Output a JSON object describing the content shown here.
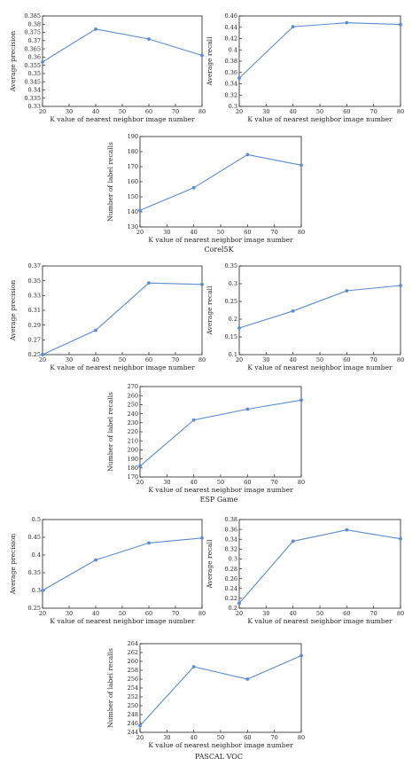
{
  "colors": {
    "series": "#5b8bd0",
    "axis": "#222222",
    "background": "#ffffff"
  },
  "captions": [
    "Corel5K",
    "ESP Game",
    "PASCAL VOC"
  ],
  "chart_data": [
    {
      "type": "line",
      "dataset": "Corel5K",
      "xlabel": "K value of nearest neighbor image number",
      "ylabel": "Average precision",
      "x": [
        20,
        40,
        60,
        80
      ],
      "xlim": [
        20,
        80
      ],
      "xticks": [
        20,
        30,
        40,
        50,
        60,
        70,
        80
      ],
      "y": [
        0.357,
        0.377,
        0.371,
        0.361
      ],
      "ylim": [
        0.33,
        0.385
      ],
      "yticks": [
        "0.33",
        "0.335",
        "0.34",
        "0.345",
        "0.35",
        "0.355",
        "0.36",
        "0.365",
        "0.37",
        "0.375",
        "0.38",
        "0.385"
      ]
    },
    {
      "type": "line",
      "dataset": "Corel5K",
      "xlabel": "K value of nearest neighbor image number",
      "ylabel": "Average recall",
      "x": [
        20,
        40,
        60,
        80
      ],
      "xlim": [
        20,
        80
      ],
      "xticks": [
        20,
        30,
        40,
        50,
        60,
        70,
        80
      ],
      "y": [
        0.35,
        0.441,
        0.448,
        0.445
      ],
      "ylim": [
        0.3,
        0.46
      ],
      "yticks": [
        "0.3",
        "0.32",
        "0.34",
        "0.36",
        "0.38",
        "0.4",
        "0.42",
        "0.44",
        "0.46"
      ]
    },
    {
      "type": "line",
      "dataset": "Corel5K",
      "xlabel": "K value of nearest neighbor image number",
      "ylabel": "Number of label recalls",
      "x": [
        20,
        40,
        60,
        80
      ],
      "xlim": [
        20,
        80
      ],
      "xticks": [
        20,
        30,
        40,
        50,
        60,
        70,
        80
      ],
      "y": [
        141,
        156,
        178,
        171
      ],
      "ylim": [
        130,
        190
      ],
      "yticks": [
        "130",
        "140",
        "150",
        "160",
        "170",
        "180",
        "190"
      ]
    },
    {
      "type": "line",
      "dataset": "ESP Game",
      "xlabel": "K value of nearest neighbor image number",
      "ylabel": "Average precision",
      "x": [
        20,
        40,
        60,
        80
      ],
      "xlim": [
        20,
        80
      ],
      "xticks": [
        20,
        30,
        40,
        50,
        60,
        70,
        80
      ],
      "y": [
        0.25,
        0.283,
        0.347,
        0.345
      ],
      "ylim": [
        0.25,
        0.37
      ],
      "yticks": [
        "0.25",
        "0.27",
        "0.29",
        "0.31",
        "0.33",
        "0.35",
        "0.37"
      ]
    },
    {
      "type": "line",
      "dataset": "ESP Game",
      "xlabel": "K value of nearest neighbor image number",
      "ylabel": "Average recall",
      "x": [
        20,
        40,
        60,
        80
      ],
      "xlim": [
        20,
        80
      ],
      "xticks": [
        20,
        30,
        40,
        50,
        60,
        70,
        80
      ],
      "y": [
        0.175,
        0.223,
        0.28,
        0.295
      ],
      "ylim": [
        0.1,
        0.35
      ],
      "yticks": [
        "0.1",
        "0.15",
        "0.2",
        "0.25",
        "0.3",
        "0.35"
      ]
    },
    {
      "type": "line",
      "dataset": "ESP Game",
      "xlabel": "K value of nearest neighbor image number",
      "ylabel": "Number of label recalls",
      "x": [
        20,
        40,
        60,
        80
      ],
      "xlim": [
        20,
        80
      ],
      "xticks": [
        20,
        30,
        40,
        50,
        60,
        70,
        80
      ],
      "y": [
        182,
        233,
        245,
        255
      ],
      "ylim": [
        170,
        270
      ],
      "yticks": [
        "170",
        "180",
        "190",
        "200",
        "210",
        "220",
        "230",
        "240",
        "250",
        "260",
        "270"
      ]
    },
    {
      "type": "line",
      "dataset": "PASCAL VOC",
      "xlabel": "K value of nearest neighbor image number",
      "ylabel": "Average precision",
      "x": [
        20,
        40,
        60,
        80
      ],
      "xlim": [
        20,
        80
      ],
      "xticks": [
        20,
        30,
        40,
        50,
        60,
        70,
        80
      ],
      "y": [
        0.3,
        0.386,
        0.434,
        0.448
      ],
      "ylim": [
        0.25,
        0.5
      ],
      "yticks": [
        "0.25",
        "0.3",
        "0.35",
        "0.4",
        "0.45",
        "0.5"
      ]
    },
    {
      "type": "line",
      "dataset": "PASCAL VOC",
      "xlabel": "K value of nearest neighbor image number",
      "ylabel": "Average recall",
      "x": [
        20,
        40,
        60,
        80
      ],
      "xlim": [
        20,
        80
      ],
      "xticks": [
        20,
        30,
        40,
        50,
        60,
        70,
        80
      ],
      "y": [
        0.21,
        0.336,
        0.359,
        0.341
      ],
      "ylim": [
        0.2,
        0.38
      ],
      "yticks": [
        "0.2",
        "0.22",
        "0.24",
        "0.26",
        "0.28",
        "0.3",
        "0.32",
        "0.34",
        "0.36",
        "0.38"
      ]
    },
    {
      "type": "line",
      "dataset": "PASCAL VOC",
      "xlabel": "K value of nearest neighbor image number",
      "ylabel": "Number of label recalls",
      "x": [
        20,
        40,
        60,
        80
      ],
      "xlim": [
        20,
        80
      ],
      "xticks": [
        20,
        30,
        40,
        50,
        60,
        70,
        80
      ],
      "y": [
        245.5,
        258.8,
        256,
        261.3
      ],
      "ylim": [
        244,
        264
      ],
      "yticks": [
        "244",
        "246",
        "248",
        "250",
        "252",
        "254",
        "256",
        "258",
        "260",
        "262",
        "264"
      ]
    }
  ]
}
